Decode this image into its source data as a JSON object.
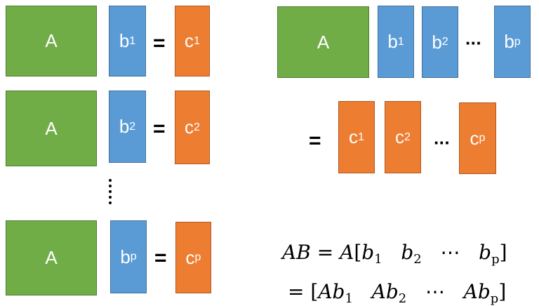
{
  "left": {
    "rows": [
      {
        "a": "A",
        "b": "b",
        "b_sub": "1",
        "eq": "=",
        "c": "c",
        "c_sub": "1"
      },
      {
        "a": "A",
        "b": "b",
        "b_sub": "2",
        "eq": "=",
        "c": "c",
        "c_sub": "2"
      },
      {
        "a": "A",
        "b": "b",
        "b_sub": "p",
        "eq": "=",
        "c": "c",
        "c_sub": "p"
      }
    ]
  },
  "right": {
    "a": "A",
    "b_cols": [
      {
        "label": "b",
        "sub": "1"
      },
      {
        "label": "b",
        "sub": "2"
      },
      {
        "label": "b",
        "sub": "p"
      }
    ],
    "b_ellipsis": "···",
    "eq": "=",
    "c_cols": [
      {
        "label": "c",
        "sub": "1"
      },
      {
        "label": "c",
        "sub": "2"
      },
      {
        "label": "c",
        "sub": "p"
      }
    ],
    "c_ellipsis": "···"
  },
  "formula": {
    "line1": {
      "lhs": "AB",
      "eq": "=",
      "a": "A",
      "open": "[",
      "b1": "b",
      "b1_sub": "1",
      "b2": "b",
      "b2_sub": "2",
      "dots": "⋯",
      "bp": "b",
      "bp_sub": "p",
      "close": "]"
    },
    "line2": {
      "eq": "=",
      "open": "[",
      "t1": "Ab",
      "t1_sub": "1",
      "t2": "Ab",
      "t2_sub": "2",
      "dots": "⋯",
      "tp": "Ab",
      "tp_sub": "p",
      "close": "]"
    }
  },
  "colors": {
    "matrix_a": "#70ad47",
    "vector_b": "#5b9bd5",
    "vector_c": "#ed7d31"
  }
}
